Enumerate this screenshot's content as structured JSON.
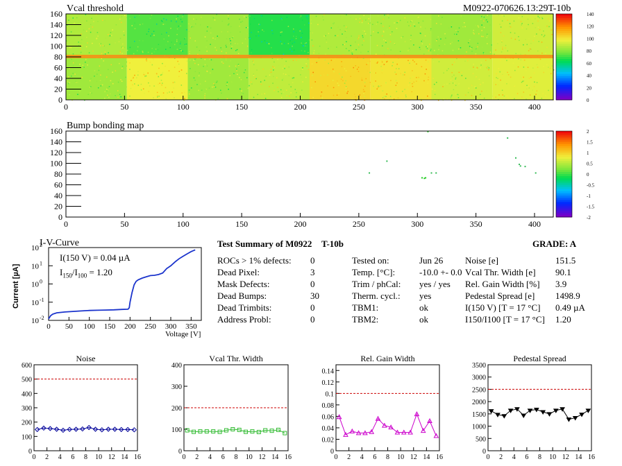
{
  "maps": {
    "threshold": {
      "title": "Vcal threshold",
      "run_label": "M0922-070626.13:29T-10b",
      "palette_ticks": [
        "140",
        "120",
        "100",
        "80",
        "60",
        "40",
        "20",
        "0"
      ]
    },
    "bump": {
      "title": "Bump bonding map",
      "palette_ticks": [
        "2",
        "1.5",
        "1",
        "0.5",
        "0",
        "-0.5",
        "-1",
        "-1.5",
        "-2"
      ]
    },
    "x_ticks": [
      "0",
      "50",
      "100",
      "150",
      "200",
      "250",
      "300",
      "350",
      "400"
    ],
    "y_ticks": [
      "160",
      "140",
      "120",
      "100",
      "80",
      "60",
      "40",
      "20",
      "0"
    ]
  },
  "iv": {
    "title": "I-V-Curve",
    "annotation_1": "I(150 V) = 0.04 µA",
    "annotation_2a": "I",
    "annotation_2b": "150",
    "annotation_2c": "/I",
    "annotation_2d": "100",
    "annotation_2e": " =  1.20",
    "xlabel": "Voltage [V]",
    "ylabel": "Current [µA]",
    "x_ticks": [
      "0",
      "50",
      "100",
      "150",
      "200",
      "250",
      "300",
      "350"
    ],
    "y_tick_bases": [
      "10",
      "10",
      "10",
      "10"
    ],
    "y_tick_exps": [
      "2",
      "1",
      "0",
      "-1",
      "-2"
    ]
  },
  "summary": {
    "title": "Test Summary of M0922",
    "temp_label": "T-10b",
    "grade": "GRADE:  A",
    "col1": [
      {
        "label": "ROCs > 1% defects:",
        "value": "0"
      },
      {
        "label": "Dead Pixel:",
        "value": "3"
      },
      {
        "label": "Mask Defects:",
        "value": "0"
      },
      {
        "label": "Dead Bumps:",
        "value": "30"
      },
      {
        "label": "Dead Trimbits:",
        "value": "0"
      },
      {
        "label": "Address Probl:",
        "value": "0"
      }
    ],
    "col2": [
      {
        "label": "Tested on:",
        "value": "Jun 26"
      },
      {
        "label": "Temp. [°C]:",
        "value": "-10.0 +- 0.0"
      },
      {
        "label": "Trim / phCal:",
        "value": "yes / yes"
      },
      {
        "label": "Therm. cycl.:",
        "value": "yes"
      },
      {
        "label": "TBM1:",
        "value": "ok"
      },
      {
        "label": "TBM2:",
        "value": "ok"
      }
    ],
    "col3": [
      {
        "label": "Noise [e]",
        "value": "151.5"
      },
      {
        "label": "Vcal Thr. Width [e]",
        "value": "90.1"
      },
      {
        "label": "Rel. Gain Width [%]",
        "value": "3.9"
      },
      {
        "label": "Pedestal Spread [e]",
        "value": "1498.9"
      },
      {
        "label": "I(150 V) [T = 17 °C]",
        "value": "0.49 µA"
      },
      {
        "label": "I150/I100  [T = 17 °C]",
        "value": "1.20"
      }
    ]
  },
  "chart_data": [
    {
      "type": "heatmap",
      "title": "Vcal threshold",
      "xlim": [
        0,
        416
      ],
      "ylim": [
        0,
        160
      ],
      "z_range": [
        0,
        140
      ],
      "notes": "16 ROC blocks (8 x 2), values mostly 60-100 with red row near y=80"
    },
    {
      "type": "heatmap",
      "title": "Bump bonding map",
      "xlim": [
        0,
        416
      ],
      "ylim": [
        0,
        160
      ],
      "z_range": [
        -2,
        2
      ],
      "points": [
        [
          259,
          82
        ],
        [
          274,
          104
        ],
        [
          304,
          73
        ],
        [
          306,
          72
        ],
        [
          307,
          73
        ],
        [
          309,
          159
        ],
        [
          312,
          82
        ],
        [
          316,
          82
        ],
        [
          377,
          147
        ],
        [
          384,
          110
        ],
        [
          387,
          98
        ],
        [
          388,
          95
        ],
        [
          392,
          94
        ],
        [
          401,
          82
        ]
      ]
    },
    {
      "type": "line",
      "title": "I-V-Curve",
      "xlabel": "Voltage [V]",
      "ylabel": "Current [µA]",
      "log_y": true,
      "xlim": [
        0,
        375
      ],
      "ylim": [
        0.01,
        100
      ],
      "x": [
        0,
        5,
        10,
        20,
        40,
        60,
        80,
        100,
        120,
        140,
        160,
        180,
        195,
        198,
        200,
        205,
        210,
        215,
        220,
        230,
        240,
        250,
        260,
        270,
        280,
        290,
        300,
        310,
        320,
        330,
        340,
        350,
        360
      ],
      "y": [
        0.012,
        0.018,
        0.022,
        0.026,
        0.029,
        0.031,
        0.033,
        0.035,
        0.036,
        0.037,
        0.038,
        0.04,
        0.041,
        0.05,
        0.1,
        0.35,
        0.9,
        1.4,
        1.7,
        2.1,
        2.5,
        2.9,
        3.0,
        3.3,
        4.0,
        7.0,
        10,
        16,
        24,
        33,
        45,
        60,
        75
      ]
    },
    {
      "type": "line",
      "title": "Noise",
      "xlim": [
        0,
        16
      ],
      "ylim": [
        0,
        600
      ],
      "threshold": 500,
      "color": "#000099",
      "x": [
        0.5,
        1.5,
        2.5,
        3.5,
        4.5,
        5.5,
        6.5,
        7.5,
        8.5,
        9.5,
        10.5,
        11.5,
        12.5,
        13.5,
        14.5,
        15.5
      ],
      "y": [
        148,
        158,
        155,
        150,
        143,
        149,
        150,
        152,
        162,
        150,
        146,
        150,
        150,
        148,
        148,
        146
      ]
    },
    {
      "type": "line",
      "title": "Vcal Thr. Width",
      "xlim": [
        0,
        16
      ],
      "ylim": [
        0,
        400
      ],
      "threshold": 200,
      "color": "#33bb33",
      "x": [
        0.5,
        1.5,
        2.5,
        3.5,
        4.5,
        5.5,
        6.5,
        7.5,
        8.5,
        9.5,
        10.5,
        11.5,
        12.5,
        13.5,
        14.5,
        15.5
      ],
      "y": [
        95,
        88,
        90,
        90,
        90,
        88,
        95,
        100,
        97,
        88,
        90,
        87,
        95,
        93,
        97,
        82
      ]
    },
    {
      "type": "line",
      "title": "Rel. Gain Width",
      "xlim": [
        0,
        16
      ],
      "ylim": [
        0,
        0.15
      ],
      "threshold": 0.1,
      "color": "#cc00cc",
      "x": [
        0.5,
        1.5,
        2.5,
        3.5,
        4.5,
        5.5,
        6.5,
        7.5,
        8.5,
        9.5,
        10.5,
        11.5,
        12.5,
        13.5,
        14.5,
        15.5
      ],
      "y": [
        0.059,
        0.028,
        0.034,
        0.031,
        0.031,
        0.033,
        0.056,
        0.044,
        0.041,
        0.032,
        0.032,
        0.032,
        0.064,
        0.035,
        0.052,
        0.026
      ]
    },
    {
      "type": "line",
      "title": "Pedestal Spread",
      "xlim": [
        0,
        16
      ],
      "ylim": [
        0,
        3500
      ],
      "threshold": 2500,
      "color": "#000000",
      "x": [
        0.5,
        1.5,
        2.5,
        3.5,
        4.5,
        5.5,
        6.5,
        7.5,
        8.5,
        9.5,
        10.5,
        11.5,
        12.5,
        13.5,
        14.5,
        15.5
      ],
      "y": [
        1620,
        1470,
        1420,
        1640,
        1700,
        1440,
        1640,
        1680,
        1580,
        1500,
        1640,
        1700,
        1280,
        1340,
        1480,
        1640
      ]
    }
  ],
  "small_plots": {
    "x_ticks": [
      "0",
      "2",
      "4",
      "6",
      "8",
      "10",
      "12",
      "14",
      "16"
    ],
    "noise_y": [
      "600",
      "500",
      "400",
      "300",
      "200",
      "100",
      "0"
    ],
    "vcal_y": [
      "400",
      "300",
      "200",
      "100",
      "0"
    ],
    "gain_y": [
      "0.14",
      "0.12",
      "0.1",
      "0.08",
      "0.06",
      "0.04",
      "0.02",
      "0"
    ],
    "ped_y": [
      "3500",
      "3000",
      "2500",
      "2000",
      "1500",
      "1000",
      "500",
      "0"
    ]
  }
}
